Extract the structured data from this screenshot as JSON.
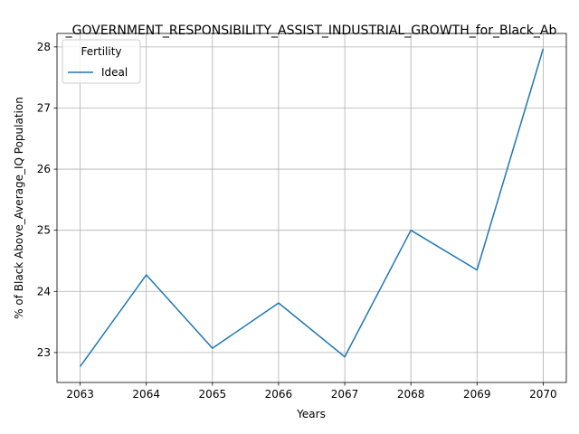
{
  "chart_data": {
    "type": "line",
    "title": "_GOVERNMENT_RESPONSIBILITY_ASSIST_INDUSTRIAL_GROWTH_for_Black_Ab",
    "xlabel": "Years",
    "ylabel": "% of Black Above_Average_IQ Population",
    "x": [
      2063,
      2064,
      2065,
      2066,
      2067,
      2068,
      2069,
      2070
    ],
    "xticks": [
      "2063",
      "2064",
      "2065",
      "2066",
      "2067",
      "2068",
      "2069",
      "2070"
    ],
    "yticks": [
      "23",
      "24",
      "25",
      "26",
      "27",
      "28"
    ],
    "xlim": [
      2062.65,
      2070.35
    ],
    "ylim": [
      22.51,
      28.22
    ],
    "grid": true,
    "legend": {
      "title": "Fertility",
      "placement": "top-left"
    },
    "series": [
      {
        "name": "Ideal",
        "color": "#1f77b4",
        "values": [
          22.77,
          24.27,
          23.07,
          23.81,
          22.93,
          25.0,
          24.35,
          27.97
        ]
      }
    ]
  }
}
